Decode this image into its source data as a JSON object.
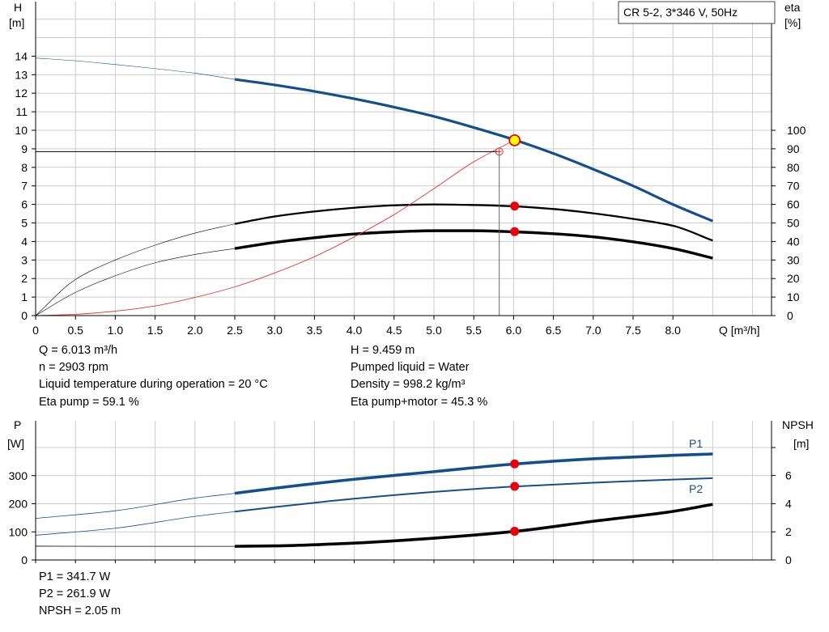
{
  "colors": {
    "blue": "#154f8a",
    "black": "#000000",
    "red": "#e8000b",
    "thinRed": "#e03a3a",
    "grid": "#cccccc",
    "duty": "#ffff00"
  },
  "chart_data": [
    {
      "type": "line",
      "title": "CR 5-2, 3*346 V, 50Hz",
      "xlabel": "Q [m³/h]",
      "ylabel": "H [m]",
      "ylabel_top": "H",
      "ylabel_unit": "[m]",
      "y2label": "eta [%]",
      "y2label_top": "eta",
      "y2label_unit": "[%]",
      "xlim": [
        0,
        9.0
      ],
      "ylim": [
        0,
        15
      ],
      "y2lim": [
        0,
        100
      ],
      "xticks": [
        "0",
        "0.5",
        "1.0",
        "1.5",
        "2.0",
        "2.5",
        "3.0",
        "3.5",
        "4.0",
        "4.5",
        "5.0",
        "5.5",
        "6.0",
        "6.5",
        "7.0",
        "7.5",
        "8.0"
      ],
      "yticks": [
        "0",
        "1",
        "2",
        "3",
        "4",
        "5",
        "6",
        "7",
        "8",
        "9",
        "10",
        "11",
        "12",
        "13",
        "14"
      ],
      "y2ticks": [
        "0",
        "10",
        "20",
        "30",
        "40",
        "50",
        "60",
        "70",
        "80",
        "90",
        "100"
      ],
      "grid": true,
      "series": [
        {
          "key": "H",
          "color": "blue",
          "axis": "left",
          "x": [
            0,
            0.5,
            1.0,
            1.5,
            2.0,
            2.5,
            3.0,
            3.5,
            4.0,
            4.5,
            5.0,
            5.5,
            6.0,
            6.5,
            7.0,
            7.5,
            8.0,
            8.5
          ],
          "y": [
            13.9,
            13.75,
            13.55,
            13.33,
            13.08,
            12.75,
            12.45,
            12.1,
            11.7,
            11.25,
            10.75,
            10.15,
            9.5,
            8.75,
            7.9,
            7.0,
            6.0,
            5.1
          ],
          "operating_from": 2.5
        },
        {
          "key": "eta_pump",
          "color": "black",
          "axis": "left",
          "x": [
            0,
            0.5,
            1.0,
            1.5,
            2.0,
            2.5,
            3.0,
            3.5,
            4.0,
            4.5,
            5.0,
            5.5,
            6.0,
            6.5,
            7.0,
            7.5,
            8.0,
            8.5
          ],
          "y": [
            0,
            1.95,
            3.0,
            3.8,
            4.45,
            4.95,
            5.35,
            5.62,
            5.82,
            5.95,
            6.0,
            5.97,
            5.9,
            5.75,
            5.52,
            5.22,
            4.85,
            4.05
          ],
          "operating_from": 2.5
        },
        {
          "key": "eta_pump_motor",
          "color": "black",
          "axis": "left",
          "x": [
            0,
            0.5,
            1.0,
            1.5,
            2.0,
            2.5,
            3.0,
            3.5,
            4.0,
            4.5,
            5.0,
            5.5,
            6.0,
            6.5,
            7.0,
            7.5,
            8.0,
            8.5
          ],
          "y": [
            0,
            1.25,
            2.15,
            2.85,
            3.3,
            3.62,
            3.95,
            4.2,
            4.4,
            4.52,
            4.58,
            4.58,
            4.52,
            4.42,
            4.25,
            3.98,
            3.62,
            3.1
          ],
          "operating_from": 2.5
        },
        {
          "key": "system_curve",
          "color": "thinRed",
          "axis": "left",
          "x": [
            0,
            0.5,
            1.0,
            1.5,
            2.0,
            2.5,
            3.0,
            3.5,
            4.0,
            4.5,
            5.0,
            5.5,
            6.0
          ],
          "y": [
            0,
            0.07,
            0.24,
            0.52,
            0.98,
            1.55,
            2.3,
            3.18,
            4.25,
            5.45,
            6.85,
            8.3,
            9.45
          ]
        }
      ],
      "duty_point": {
        "x": 6.013,
        "y": 9.459
      },
      "red_points": [
        {
          "x": 6.013,
          "y": 5.91
        },
        {
          "x": 6.013,
          "y": 4.53
        }
      ],
      "reference_point": {
        "x": 5.82,
        "y": 8.85
      }
    },
    {
      "type": "line",
      "ylabel": "P [W]",
      "ylabel_top": "P",
      "ylabel_unit": "[W]",
      "y2label": "NPSH [m]",
      "y2label_top": "NPSH",
      "y2label_unit": "[m]",
      "xlim": [
        0,
        9.0
      ],
      "ylim": [
        0,
        400
      ],
      "y2lim": [
        0,
        8
      ],
      "yticks": [
        "0",
        "100",
        "200",
        "300"
      ],
      "y2ticks": [
        "0",
        "2",
        "4",
        "6"
      ],
      "grid": true,
      "series": [
        {
          "key": "P1",
          "name": "P1",
          "color": "blue",
          "axis": "left",
          "x": [
            0,
            1.0,
            2.0,
            2.5,
            3.0,
            4.0,
            5.0,
            6.0,
            7.0,
            8.0,
            8.5
          ],
          "y": [
            148,
            175,
            220,
            237,
            255,
            287,
            314,
            341,
            360,
            372,
            377
          ],
          "operating_from": 2.5
        },
        {
          "key": "P2",
          "name": "P2",
          "color": "blue",
          "axis": "left",
          "x": [
            0,
            1.0,
            2.0,
            2.5,
            3.0,
            4.0,
            5.0,
            6.0,
            7.0,
            8.0,
            8.5
          ],
          "y": [
            88,
            113,
            155,
            172,
            188,
            218,
            242,
            261,
            275,
            286,
            291
          ],
          "operating_from": 2.5
        },
        {
          "key": "NPSH",
          "color": "black",
          "axis": "right",
          "x": [
            0,
            1.0,
            2.0,
            2.5,
            3.0,
            4.0,
            5.0,
            6.0,
            7.0,
            8.0,
            8.5
          ],
          "y": [
            0.98,
            0.97,
            0.97,
            0.97,
            1.0,
            1.2,
            1.55,
            2.02,
            2.75,
            3.45,
            3.95
          ],
          "operating_from": 2.5
        }
      ],
      "red_points": [
        {
          "x": 6.013,
          "y": 341.7
        },
        {
          "x": 6.013,
          "y": 261.9
        },
        {
          "x": 6.013,
          "y": 102
        }
      ]
    }
  ],
  "info_top": [
    "Q = 6.013 m³/h",
    "n = 2903 rpm",
    "Liquid temperature during operation = 20 °C",
    "Eta pump = 59.1 %",
    "H = 9.459 m",
    "Pumped liquid = Water",
    "Density = 998.2 kg/m³",
    "Eta pump+motor = 45.3 %"
  ],
  "info_bottom": [
    "P1 = 341.7 W",
    "P2 = 261.9 W",
    "NPSH = 2.05 m"
  ]
}
